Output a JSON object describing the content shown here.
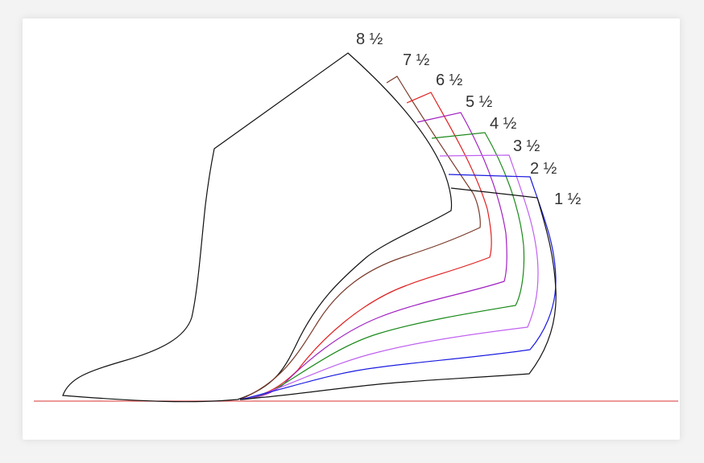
{
  "diagram": {
    "baseline_color": "#e05a5a",
    "sizes": [
      {
        "label": "8 ½",
        "color": "#111111"
      },
      {
        "label": "7 ½",
        "color": "#7a3a2a"
      },
      {
        "label": "6 ½",
        "color": "#e02020"
      },
      {
        "label": "5 ½",
        "color": "#a020c0"
      },
      {
        "label": "4 ½",
        "color": "#1a8a1a"
      },
      {
        "label": "3 ½",
        "color": "#c060f0"
      },
      {
        "label": "2 ½",
        "color": "#1a1ae0"
      },
      {
        "label": "1 ½",
        "color": "#111111"
      }
    ]
  }
}
